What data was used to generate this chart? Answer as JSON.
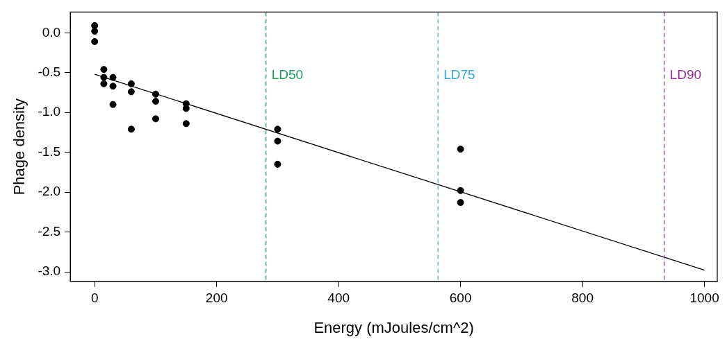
{
  "chart_data": {
    "type": "scatter",
    "xlabel": "Energy (mJoules/cm^2)",
    "ylabel": "Phage density",
    "xlim": [
      -40,
      1021
    ],
    "ylim": [
      -3.12,
      0.26
    ],
    "xticks": [
      0,
      200,
      400,
      600,
      800,
      1000
    ],
    "yticks": [
      {
        "value": 0,
        "label": "0.0"
      },
      -0.5,
      {
        "value": -1,
        "label": "-1.0"
      },
      -1.5,
      {
        "value": -2,
        "label": "-2.0"
      },
      -2.5,
      {
        "value": -3,
        "label": "-3.0"
      }
    ],
    "grid": false,
    "legend": false,
    "series": [
      {
        "type": "scatter",
        "marker": "circle",
        "color": "#000000",
        "x": [
          0,
          0,
          0,
          15,
          15,
          15,
          30,
          30,
          30,
          60,
          60,
          60,
          100,
          100,
          100,
          150,
          150,
          150,
          300,
          300,
          300,
          600,
          600,
          600
        ],
        "values": [
          0.09,
          0.02,
          -0.11,
          -0.46,
          -0.56,
          -0.64,
          -0.56,
          -0.67,
          -0.9,
          -0.64,
          -0.74,
          -1.21,
          -0.77,
          -0.86,
          -1.08,
          -0.89,
          -0.95,
          -1.14,
          -1.21,
          -1.36,
          -1.65,
          -1.46,
          -1.98,
          -2.13
        ]
      },
      {
        "type": "line",
        "marker": "none",
        "color": "#000000",
        "x": [
          0,
          1000
        ],
        "values": [
          -0.52,
          -2.98
        ]
      }
    ],
    "ref_lines": [
      {
        "axis": "x",
        "value": 281,
        "label": "LD50",
        "color": "#1a9e5a",
        "line_style": "dashed"
      },
      {
        "axis": "x",
        "value": 563,
        "label": "LD75",
        "color": "#33a8d8",
        "line_style": "dashed"
      },
      {
        "axis": "x",
        "value": 934,
        "label": "LD90",
        "color": "#9b2a9b",
        "line_style": "dashed"
      }
    ]
  }
}
